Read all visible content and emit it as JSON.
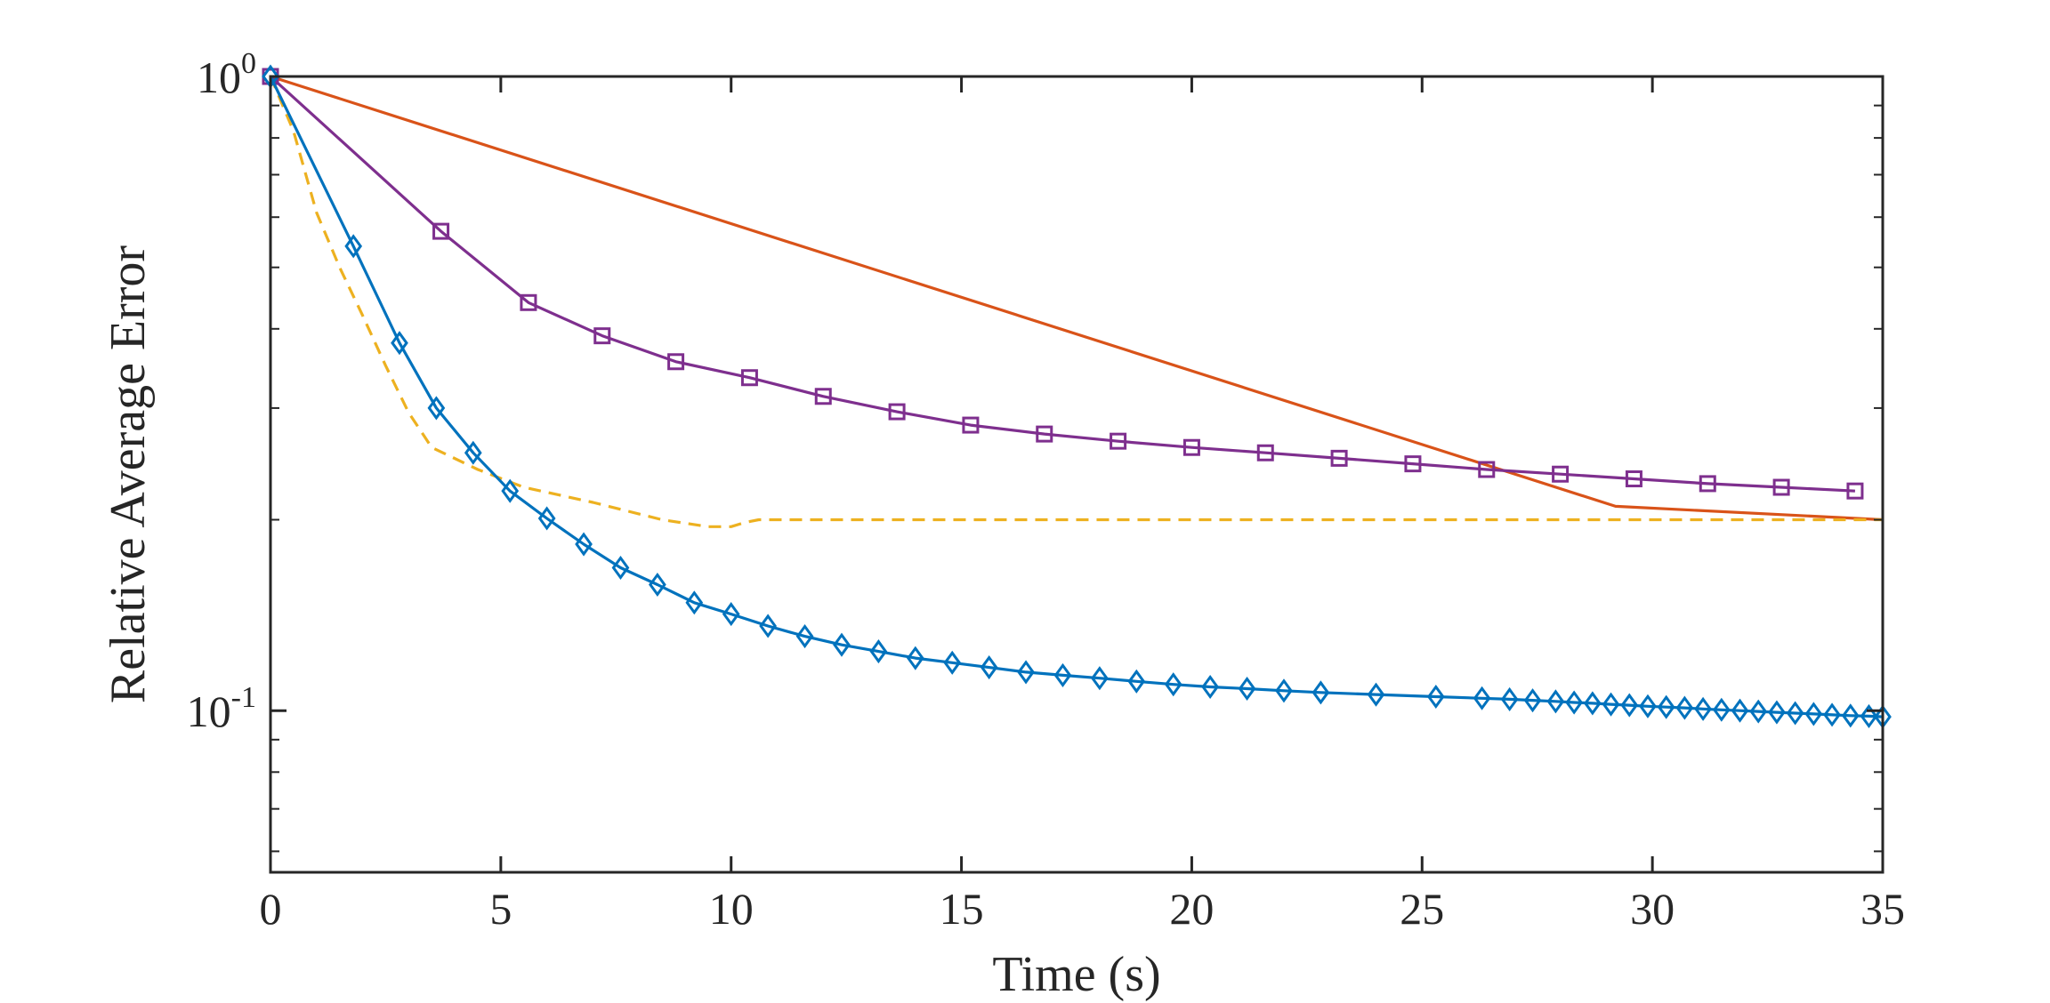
{
  "chart_data": {
    "type": "line",
    "title": "",
    "xlabel": "Time (s)",
    "ylabel": "Relative Average Error",
    "xlim": [
      0,
      35
    ],
    "ylim": [
      0.0556,
      1.0
    ],
    "yscale": "log",
    "grid": false,
    "legend": "none",
    "x_ticks": [
      {
        "value": 0,
        "label": "0"
      },
      {
        "value": 5,
        "label": "5"
      },
      {
        "value": 10,
        "label": "10"
      },
      {
        "value": 15,
        "label": "15"
      },
      {
        "value": 20,
        "label": "20"
      },
      {
        "value": 25,
        "label": "25"
      },
      {
        "value": 30,
        "label": "30"
      },
      {
        "value": 35,
        "label": "35"
      }
    ],
    "y_ticks": [
      {
        "value": 1.0,
        "base": "10",
        "exponent": "0"
      },
      {
        "value": 0.1,
        "base": "10",
        "exponent": "-1"
      }
    ],
    "series": [
      {
        "name": "Orange solid",
        "color": "#D95319",
        "style": "solid",
        "marker": "none",
        "x": [
          0,
          29.2,
          35
        ],
        "y": [
          1.0,
          0.21,
          0.2
        ]
      },
      {
        "name": "Yellow dashed",
        "color": "#EDB120",
        "style": "dashed",
        "marker": "none",
        "x": [
          0,
          0.5,
          1.0,
          1.5,
          2.0,
          2.5,
          3.0,
          3.5,
          4.5,
          5.5,
          7.0,
          8.5,
          9.5,
          10.0,
          10.3,
          10.6,
          12,
          15,
          20,
          25,
          30,
          35
        ],
        "y": [
          1.0,
          0.82,
          0.61,
          0.5,
          0.42,
          0.35,
          0.295,
          0.26,
          0.24,
          0.225,
          0.213,
          0.2,
          0.195,
          0.195,
          0.198,
          0.2,
          0.2,
          0.2,
          0.2,
          0.2,
          0.2,
          0.2
        ]
      },
      {
        "name": "Purple squares",
        "color": "#7E2F8E",
        "style": "solid",
        "marker": "square",
        "x": [
          0,
          3.7,
          5.6,
          7.2,
          8.8,
          10.4,
          12.0,
          13.6,
          15.2,
          16.8,
          18.4,
          20.0,
          21.6,
          23.2,
          24.8,
          26.4,
          28.0,
          29.6,
          31.2,
          32.8,
          34.4
        ],
        "y": [
          1.0,
          0.57,
          0.44,
          0.39,
          0.355,
          0.335,
          0.313,
          0.296,
          0.282,
          0.273,
          0.266,
          0.26,
          0.255,
          0.25,
          0.245,
          0.24,
          0.236,
          0.232,
          0.228,
          0.225,
          0.222
        ]
      },
      {
        "name": "Blue diamonds",
        "color": "#0072BD",
        "style": "solid",
        "marker": "diamond",
        "x": [
          0,
          1.8,
          2.8,
          3.6,
          4.4,
          5.2,
          6.0,
          6.8,
          7.6,
          8.4,
          9.2,
          10.0,
          10.8,
          11.6,
          12.4,
          13.2,
          14.0,
          14.8,
          15.6,
          16.4,
          17.2,
          18.0,
          18.8,
          19.6,
          20.4,
          21.2,
          22.0,
          22.8,
          24.0,
          25.3,
          26.3,
          26.9,
          27.4,
          27.9,
          28.3,
          28.7,
          29.1,
          29.5,
          29.9,
          30.3,
          30.7,
          31.1,
          31.5,
          31.9,
          32.3,
          32.7,
          33.1,
          33.5,
          33.9,
          34.3,
          34.7,
          35.0
        ],
        "y": [
          1.0,
          0.54,
          0.38,
          0.3,
          0.255,
          0.222,
          0.201,
          0.183,
          0.168,
          0.158,
          0.148,
          0.142,
          0.136,
          0.131,
          0.127,
          0.124,
          0.121,
          0.119,
          0.117,
          0.115,
          0.1137,
          0.1125,
          0.1112,
          0.11,
          0.109,
          0.1083,
          0.1075,
          0.1068,
          0.106,
          0.1052,
          0.1046,
          0.1042,
          0.1038,
          0.1034,
          0.103,
          0.1027,
          0.1023,
          0.102,
          0.1016,
          0.1013,
          0.101,
          0.1006,
          0.1003,
          0.1,
          0.0997,
          0.0994,
          0.0991,
          0.0988,
          0.0985,
          0.0982,
          0.098,
          0.0978
        ]
      }
    ]
  }
}
